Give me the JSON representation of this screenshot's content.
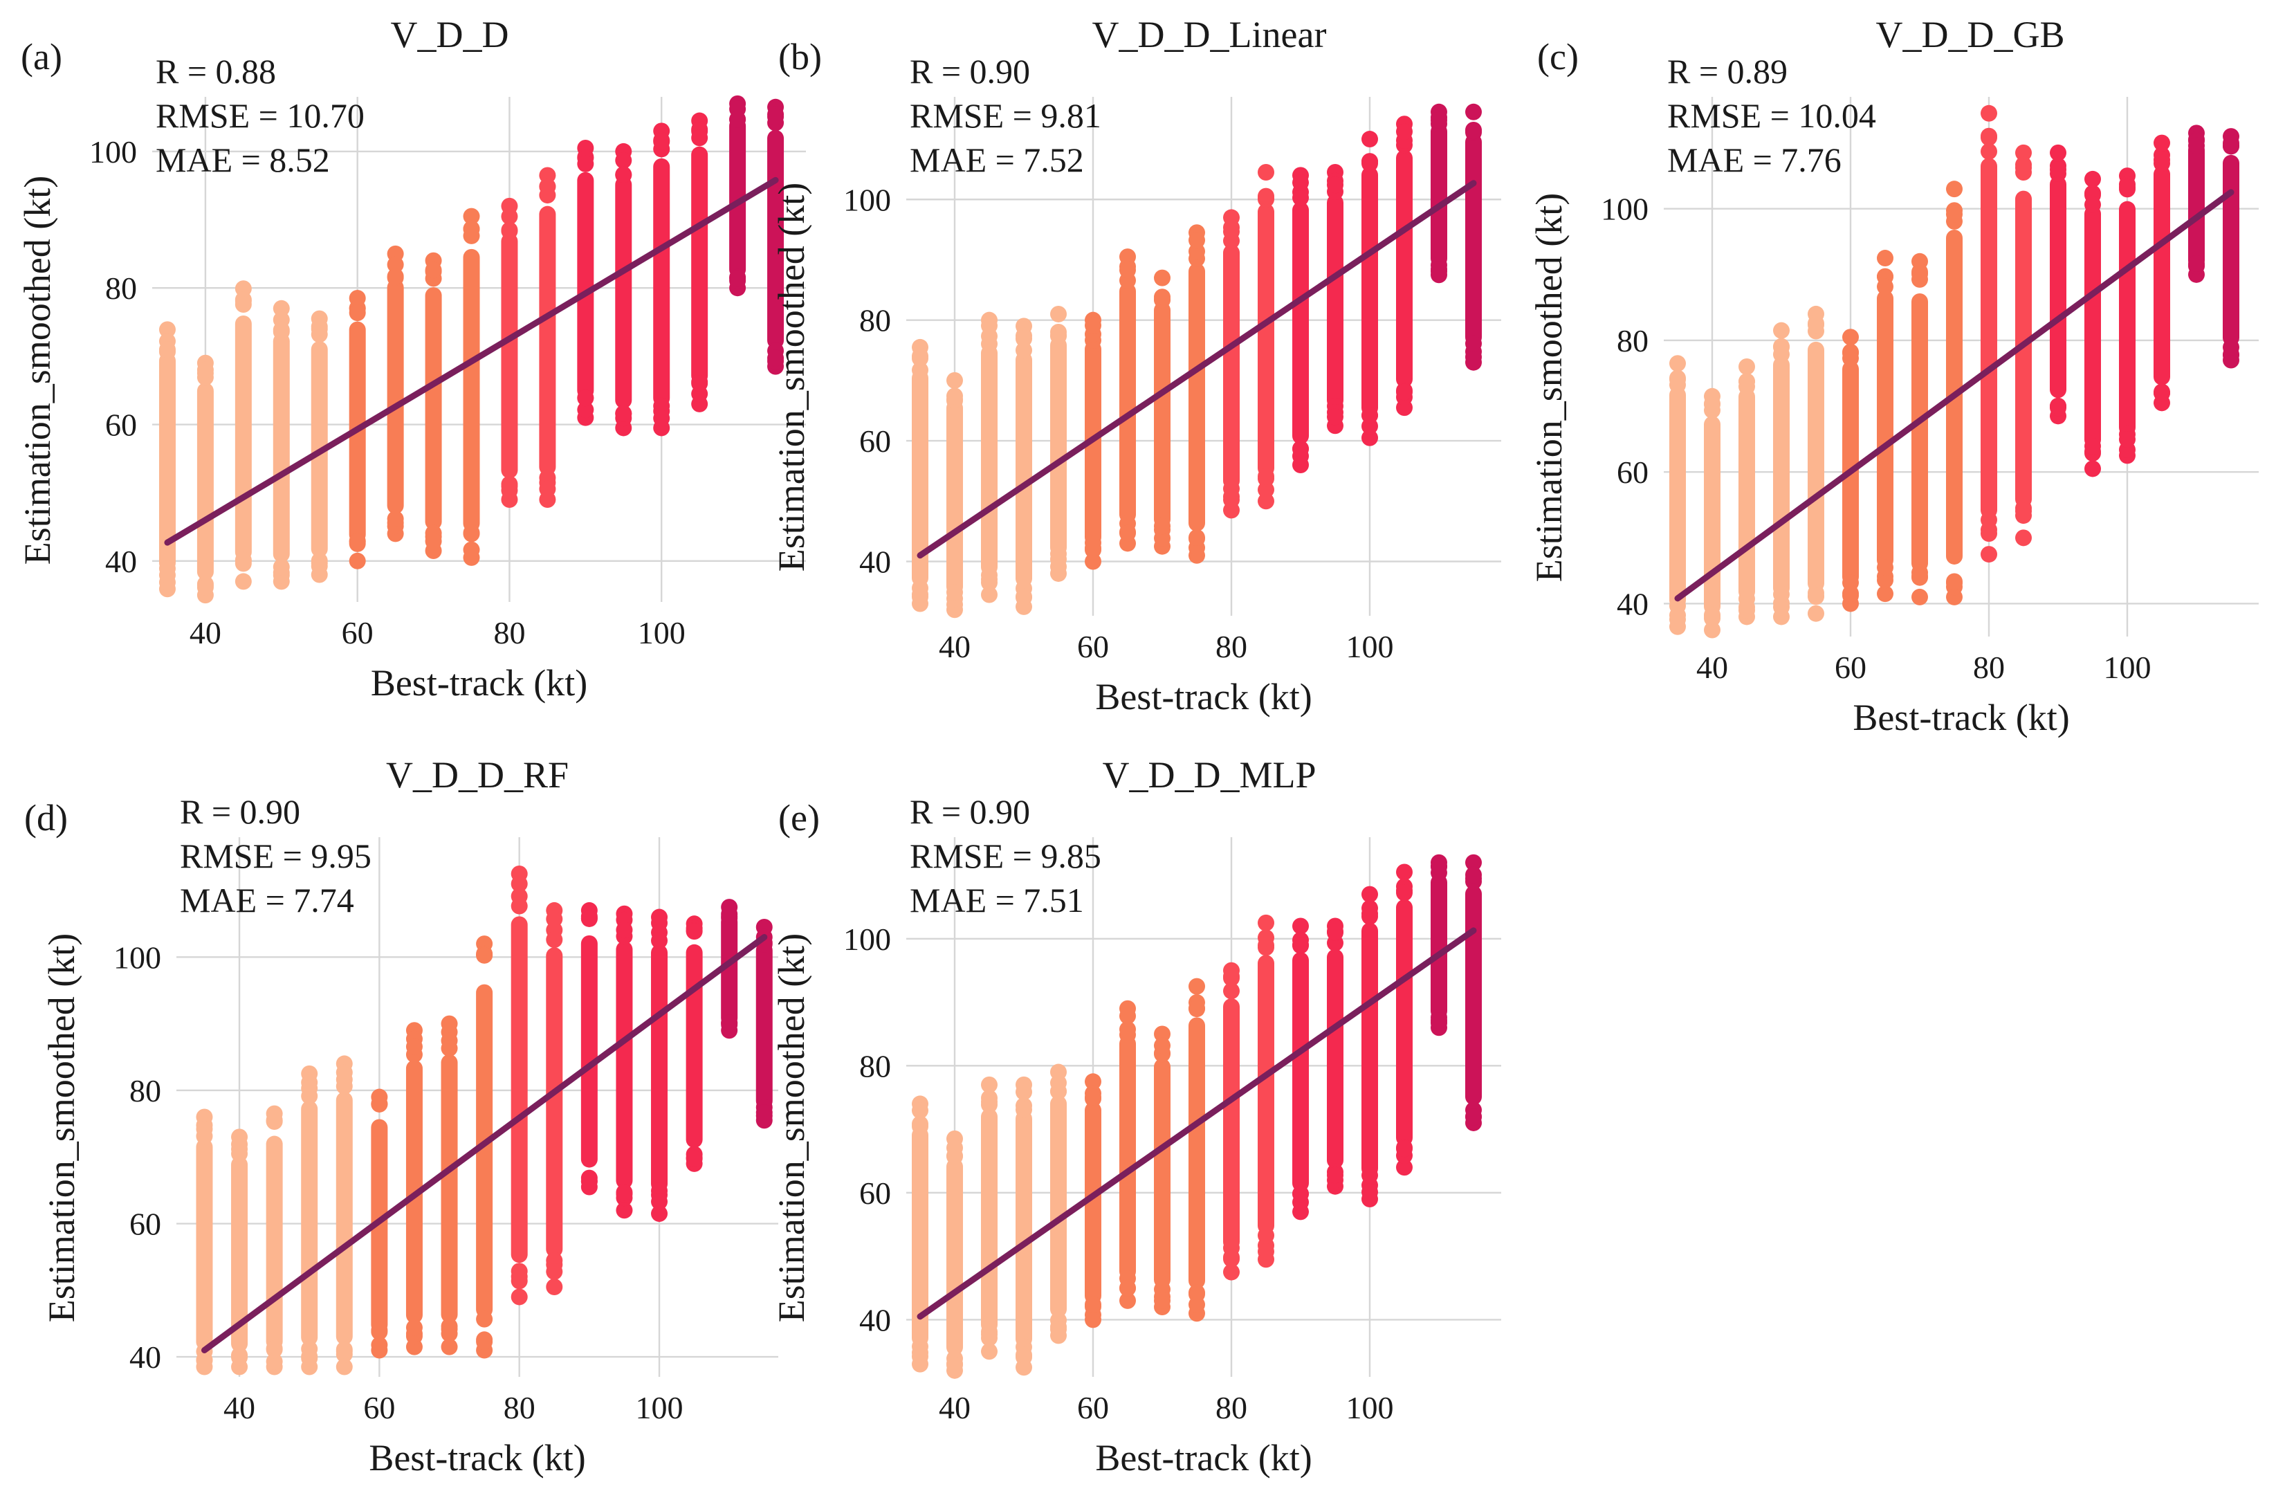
{
  "colors": {
    "band_35_55": "#fcb58f",
    "band_60_75": "#f87d55",
    "band_80_85": "#fa4a55",
    "band_90_105": "#f4294f",
    "band_110_115": "#cc1358",
    "fit_line": "#7a1f5c",
    "grid": "#d6d6d6"
  },
  "chart_data": [
    {
      "letter": "(a)",
      "type": "scatter",
      "title": "V_D_D",
      "xlabel": "Best-track (kt)",
      "ylabel": "Estimation_smoothed (kt)",
      "xlim": [
        33,
        119
      ],
      "ylim": [
        34,
        108
      ],
      "xticks": [
        40,
        60,
        80,
        100
      ],
      "yticks": [
        40,
        60,
        80,
        100
      ],
      "stats": [
        "R = 0.88",
        "RMSE = 10.70",
        "MAE = 8.52"
      ],
      "fit": {
        "x": [
          35,
          115
        ],
        "y": [
          42.7,
          95.8
        ]
      },
      "columns": [
        {
          "x": 35,
          "min": 35.9,
          "max": 73.9
        },
        {
          "x": 40,
          "min": 35.0,
          "max": 69.0
        },
        {
          "x": 45,
          "min": 37.0,
          "max": 79.9
        },
        {
          "x": 50,
          "min": 37.0,
          "max": 77.0
        },
        {
          "x": 55,
          "min": 38.0,
          "max": 75.5
        },
        {
          "x": 60,
          "min": 40.0,
          "max": 78.5
        },
        {
          "x": 65,
          "min": 44.0,
          "max": 85.0
        },
        {
          "x": 70,
          "min": 41.5,
          "max": 84.0
        },
        {
          "x": 75,
          "min": 40.5,
          "max": 90.5
        },
        {
          "x": 80,
          "min": 49.0,
          "max": 92.0
        },
        {
          "x": 85,
          "min": 49.0,
          "max": 96.5
        },
        {
          "x": 90,
          "min": 61.0,
          "max": 100.5
        },
        {
          "x": 95,
          "min": 59.5,
          "max": 100.0
        },
        {
          "x": 100,
          "min": 59.5,
          "max": 103.0
        },
        {
          "x": 105,
          "min": 63.0,
          "max": 104.5
        },
        {
          "x": 110,
          "min": 80.0,
          "max": 107.0
        },
        {
          "x": 115,
          "min": 68.5,
          "max": 106.5
        }
      ]
    },
    {
      "letter": "(b)",
      "type": "scatter",
      "title": "V_D_D_Linear",
      "xlabel": "Best-track (kt)",
      "ylabel": "Estimation_smoothed (kt)",
      "xlim": [
        33,
        119
      ],
      "ylim": [
        31,
        117
      ],
      "xticks": [
        40,
        60,
        80,
        100
      ],
      "yticks": [
        40,
        60,
        80,
        100
      ],
      "stats": [
        "R = 0.90",
        "RMSE = 9.81",
        "MAE = 7.52"
      ],
      "fit": {
        "x": [
          35,
          115
        ],
        "y": [
          41.0,
          102.7
        ]
      },
      "columns": [
        {
          "x": 35,
          "min": 33.0,
          "max": 75.5
        },
        {
          "x": 40,
          "min": 32.0,
          "max": 70.0
        },
        {
          "x": 45,
          "min": 34.5,
          "max": 80.0
        },
        {
          "x": 50,
          "min": 32.5,
          "max": 79.0
        },
        {
          "x": 55,
          "min": 38.0,
          "max": 81.0
        },
        {
          "x": 60,
          "min": 40.0,
          "max": 80.0
        },
        {
          "x": 65,
          "min": 43.0,
          "max": 90.5
        },
        {
          "x": 70,
          "min": 42.5,
          "max": 87.0
        },
        {
          "x": 75,
          "min": 41.0,
          "max": 94.5
        },
        {
          "x": 80,
          "min": 48.5,
          "max": 97.0
        },
        {
          "x": 85,
          "min": 50.0,
          "max": 104.5
        },
        {
          "x": 90,
          "min": 56.0,
          "max": 104.0
        },
        {
          "x": 95,
          "min": 62.5,
          "max": 104.5
        },
        {
          "x": 100,
          "min": 60.5,
          "max": 110.0
        },
        {
          "x": 105,
          "min": 65.5,
          "max": 112.5
        },
        {
          "x": 110,
          "min": 87.5,
          "max": 114.5
        },
        {
          "x": 115,
          "min": 73.0,
          "max": 114.5
        }
      ]
    },
    {
      "letter": "(c)",
      "type": "scatter",
      "title": "V_D_D_GB",
      "xlabel": "Best-track (kt)",
      "ylabel": "Estimation_smoothed (kt)",
      "xlim": [
        33,
        119
      ],
      "ylim": [
        35,
        117
      ],
      "xticks": [
        40,
        60,
        80,
        100
      ],
      "yticks": [
        40,
        60,
        80,
        100
      ],
      "stats": [
        "R = 0.89",
        "RMSE = 10.04",
        "MAE = 7.76"
      ],
      "fit": {
        "x": [
          35,
          115
        ],
        "y": [
          40.8,
          102.5
        ]
      },
      "columns": [
        {
          "x": 35,
          "min": 36.5,
          "max": 76.5
        },
        {
          "x": 40,
          "min": 36.0,
          "max": 71.5
        },
        {
          "x": 45,
          "min": 38.0,
          "max": 76.0
        },
        {
          "x": 50,
          "min": 38.0,
          "max": 81.5
        },
        {
          "x": 55,
          "min": 38.5,
          "max": 84.0
        },
        {
          "x": 60,
          "min": 40.0,
          "max": 80.5
        },
        {
          "x": 65,
          "min": 41.5,
          "max": 92.5
        },
        {
          "x": 70,
          "min": 41.0,
          "max": 92.0
        },
        {
          "x": 75,
          "min": 41.0,
          "max": 103.0
        },
        {
          "x": 80,
          "min": 47.5,
          "max": 114.5
        },
        {
          "x": 85,
          "min": 50.0,
          "max": 108.5
        },
        {
          "x": 90,
          "min": 68.5,
          "max": 108.5
        },
        {
          "x": 95,
          "min": 60.5,
          "max": 104.5
        },
        {
          "x": 100,
          "min": 62.5,
          "max": 105.0
        },
        {
          "x": 105,
          "min": 70.5,
          "max": 110.0
        },
        {
          "x": 110,
          "min": 90.0,
          "max": 111.5
        },
        {
          "x": 115,
          "min": 77.0,
          "max": 111.0
        }
      ]
    },
    {
      "letter": "(d)",
      "type": "scatter",
      "title": "V_D_D_RF",
      "xlabel": "Best-track (kt)",
      "ylabel": "Estimation_smoothed (kt)",
      "xlim": [
        31,
        117
      ],
      "ylim": [
        37,
        118
      ],
      "xticks": [
        40,
        60,
        80,
        100
      ],
      "yticks": [
        40,
        60,
        80,
        100
      ],
      "stats": [
        "R = 0.90",
        "RMSE = 9.95",
        "MAE = 7.74"
      ],
      "fit": {
        "x": [
          35,
          115
        ],
        "y": [
          41.0,
          103.0
        ]
      },
      "columns": [
        {
          "x": 35,
          "min": 38.5,
          "max": 76.0
        },
        {
          "x": 40,
          "min": 38.5,
          "max": 73.0
        },
        {
          "x": 45,
          "min": 38.5,
          "max": 76.5
        },
        {
          "x": 50,
          "min": 38.5,
          "max": 82.5
        },
        {
          "x": 55,
          "min": 38.5,
          "max": 84.0
        },
        {
          "x": 60,
          "min": 41.0,
          "max": 79.0
        },
        {
          "x": 65,
          "min": 41.5,
          "max": 89.0
        },
        {
          "x": 70,
          "min": 41.5,
          "max": 90.0
        },
        {
          "x": 75,
          "min": 41.0,
          "max": 102.0
        },
        {
          "x": 80,
          "min": 49.0,
          "max": 112.5
        },
        {
          "x": 85,
          "min": 50.5,
          "max": 107.0
        },
        {
          "x": 90,
          "min": 65.5,
          "max": 107.0
        },
        {
          "x": 95,
          "min": 62.0,
          "max": 106.5
        },
        {
          "x": 100,
          "min": 61.5,
          "max": 106.0
        },
        {
          "x": 105,
          "min": 69.0,
          "max": 105.0
        },
        {
          "x": 110,
          "min": 89.0,
          "max": 107.5
        },
        {
          "x": 115,
          "min": 75.5,
          "max": 104.5
        }
      ]
    },
    {
      "letter": "(e)",
      "type": "scatter",
      "title": "V_D_D_MLP",
      "xlabel": "Best-track (kt)",
      "ylabel": "Estimation_smoothed (kt)",
      "xlim": [
        33,
        119
      ],
      "ylim": [
        31,
        116
      ],
      "xticks": [
        40,
        60,
        80,
        100
      ],
      "yticks": [
        40,
        60,
        80,
        100
      ],
      "stats": [
        "R = 0.90",
        "RMSE = 9.85",
        "MAE = 7.51"
      ],
      "fit": {
        "x": [
          35,
          115
        ],
        "y": [
          40.5,
          101.3
        ]
      },
      "columns": [
        {
          "x": 35,
          "min": 33.0,
          "max": 74.0
        },
        {
          "x": 40,
          "min": 32.0,
          "max": 68.5
        },
        {
          "x": 45,
          "min": 35.0,
          "max": 77.0
        },
        {
          "x": 50,
          "min": 32.5,
          "max": 77.0
        },
        {
          "x": 55,
          "min": 37.5,
          "max": 79.0
        },
        {
          "x": 60,
          "min": 40.0,
          "max": 77.5
        },
        {
          "x": 65,
          "min": 43.0,
          "max": 89.0
        },
        {
          "x": 70,
          "min": 42.0,
          "max": 85.0
        },
        {
          "x": 75,
          "min": 41.0,
          "max": 92.5
        },
        {
          "x": 80,
          "min": 47.5,
          "max": 95.0
        },
        {
          "x": 85,
          "min": 49.5,
          "max": 102.5
        },
        {
          "x": 90,
          "min": 57.0,
          "max": 102.0
        },
        {
          "x": 95,
          "min": 61.0,
          "max": 102.0
        },
        {
          "x": 100,
          "min": 59.0,
          "max": 107.0
        },
        {
          "x": 105,
          "min": 64.0,
          "max": 110.5
        },
        {
          "x": 110,
          "min": 86.0,
          "max": 112.0
        },
        {
          "x": 115,
          "min": 71.0,
          "max": 112.0
        }
      ]
    }
  ]
}
